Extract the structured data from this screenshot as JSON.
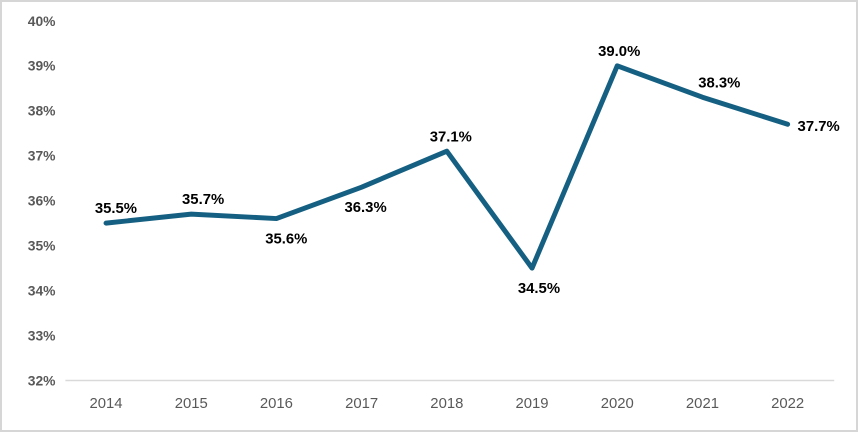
{
  "chart_data": {
    "type": "line",
    "title": "",
    "xlabel": "",
    "ylabel": "",
    "categories": [
      "2014",
      "2015",
      "2016",
      "2017",
      "2018",
      "2019",
      "2020",
      "2021",
      "2022"
    ],
    "values": [
      35.5,
      35.7,
      35.6,
      36.3,
      37.1,
      34.5,
      39.0,
      38.3,
      37.7
    ],
    "data_labels": [
      "35.5%",
      "35.7%",
      "35.6%",
      "36.3%",
      "37.1%",
      "34.5%",
      "39.0%",
      "38.3%",
      "37.7%"
    ],
    "data_label_positions": [
      "above",
      "above",
      "below",
      "below",
      "above",
      "below",
      "above",
      "above",
      "right"
    ],
    "ylim": [
      32,
      40
    ],
    "ytick_step": 1,
    "ytick_labels": [
      "32%",
      "33%",
      "34%",
      "35%",
      "36%",
      "37%",
      "38%",
      "39%",
      "40%"
    ],
    "grid": false,
    "legend": "none",
    "colors": {
      "series_line": "#156082",
      "data_label_text": "#000000",
      "tick_label_text": "#595959",
      "axis_line": "#d9d9d9",
      "background": "#ffffff",
      "frame_border": "#d6d6d6"
    }
  }
}
